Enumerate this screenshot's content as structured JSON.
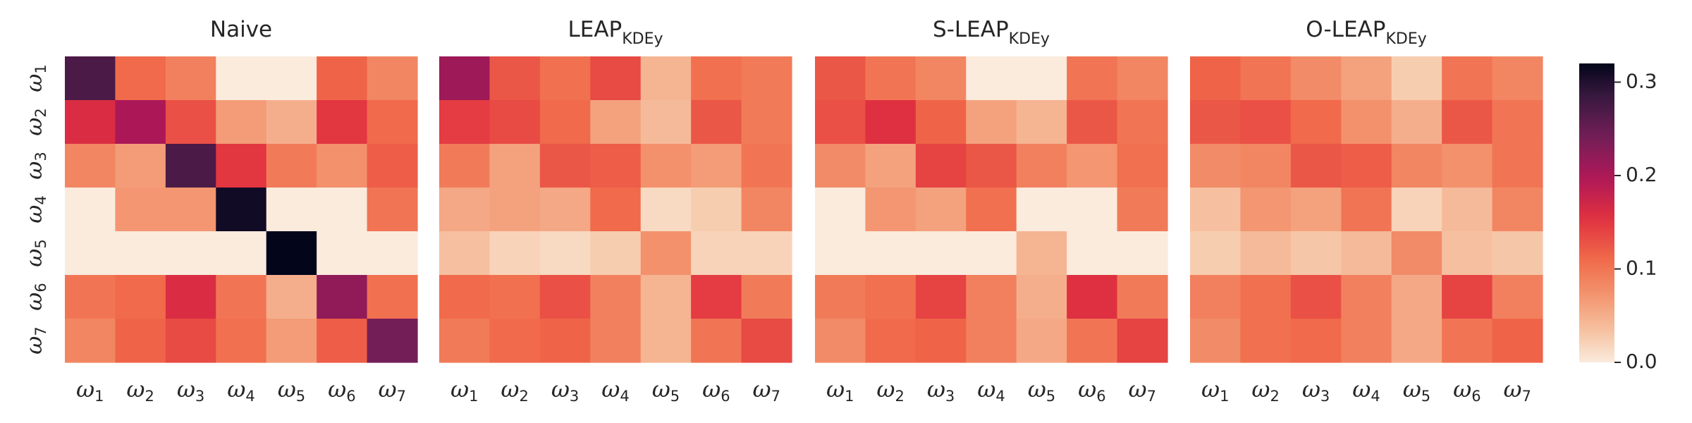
{
  "chart_data": [
    {
      "type": "heatmap",
      "title": "Naive",
      "title_main": "Naive",
      "title_sub": "",
      "xticks": [
        "ω1",
        "ω2",
        "ω3",
        "ω4",
        "ω5",
        "ω6",
        "ω7"
      ],
      "yticks": [
        "ω1",
        "ω2",
        "ω3",
        "ω4",
        "ω5",
        "ω6",
        "ω7"
      ],
      "values": [
        [
          0.27,
          0.11,
          0.09,
          0.0,
          0.0,
          0.115,
          0.085
        ],
        [
          0.16,
          0.2,
          0.13,
          0.065,
          0.05,
          0.15,
          0.11
        ],
        [
          0.085,
          0.065,
          0.27,
          0.15,
          0.095,
          0.075,
          0.12
        ],
        [
          0.0,
          0.07,
          0.07,
          0.31,
          0.0,
          0.0,
          0.1
        ],
        [
          0.0,
          0.0,
          0.0,
          0.0,
          0.32,
          0.0,
          0.0
        ],
        [
          0.1,
          0.11,
          0.16,
          0.1,
          0.05,
          0.22,
          0.105
        ],
        [
          0.085,
          0.115,
          0.135,
          0.105,
          0.065,
          0.12,
          0.24
        ]
      ]
    },
    {
      "type": "heatmap",
      "title": "LEAPKDEy",
      "title_main": "LEAP",
      "title_sub": "KDEy",
      "xticks": [
        "ω1",
        "ω2",
        "ω3",
        "ω4",
        "ω5",
        "ω6",
        "ω7"
      ],
      "yticks": [
        "ω1",
        "ω2",
        "ω3",
        "ω4",
        "ω5",
        "ω6",
        "ω7"
      ],
      "values": [
        [
          0.21,
          0.125,
          0.105,
          0.135,
          0.045,
          0.105,
          0.095
        ],
        [
          0.145,
          0.135,
          0.11,
          0.06,
          0.04,
          0.125,
          0.095
        ],
        [
          0.095,
          0.06,
          0.125,
          0.12,
          0.075,
          0.065,
          0.1
        ],
        [
          0.055,
          0.06,
          0.055,
          0.11,
          0.015,
          0.025,
          0.085
        ],
        [
          0.035,
          0.02,
          0.015,
          0.025,
          0.075,
          0.02,
          0.02
        ],
        [
          0.11,
          0.105,
          0.13,
          0.09,
          0.045,
          0.145,
          0.095
        ],
        [
          0.095,
          0.11,
          0.115,
          0.09,
          0.045,
          0.1,
          0.135
        ]
      ]
    },
    {
      "type": "heatmap",
      "title": "S-LEAPKDEy",
      "title_main": "S-LEAP",
      "title_sub": "KDEy",
      "xticks": [
        "ω1",
        "ω2",
        "ω3",
        "ω4",
        "ω5",
        "ω6",
        "ω7"
      ],
      "yticks": [
        "ω1",
        "ω2",
        "ω3",
        "ω4",
        "ω5",
        "ω6",
        "ω7"
      ],
      "values": [
        [
          0.125,
          0.1,
          0.085,
          0.0,
          0.0,
          0.1,
          0.085
        ],
        [
          0.13,
          0.155,
          0.115,
          0.06,
          0.045,
          0.125,
          0.1
        ],
        [
          0.08,
          0.06,
          0.14,
          0.125,
          0.09,
          0.07,
          0.105
        ],
        [
          0.0,
          0.07,
          0.06,
          0.105,
          0.0,
          0.0,
          0.095
        ],
        [
          0.0,
          0.0,
          0.0,
          0.0,
          0.045,
          0.0,
          0.0
        ],
        [
          0.095,
          0.105,
          0.14,
          0.09,
          0.05,
          0.155,
          0.095
        ],
        [
          0.08,
          0.11,
          0.115,
          0.09,
          0.055,
          0.1,
          0.14
        ]
      ]
    },
    {
      "type": "heatmap",
      "title": "O-LEAPKDEy",
      "title_main": "O-LEAP",
      "title_sub": "KDEy",
      "xticks": [
        "ω1",
        "ω2",
        "ω3",
        "ω4",
        "ω5",
        "ω6",
        "ω7"
      ],
      "yticks": [
        "ω1",
        "ω2",
        "ω3",
        "ω4",
        "ω5",
        "ω6",
        "ω7"
      ],
      "values": [
        [
          0.115,
          0.1,
          0.08,
          0.06,
          0.025,
          0.1,
          0.085
        ],
        [
          0.125,
          0.13,
          0.11,
          0.075,
          0.05,
          0.125,
          0.1
        ],
        [
          0.08,
          0.085,
          0.125,
          0.12,
          0.085,
          0.075,
          0.1
        ],
        [
          0.035,
          0.07,
          0.06,
          0.1,
          0.02,
          0.04,
          0.085
        ],
        [
          0.025,
          0.04,
          0.03,
          0.04,
          0.08,
          0.035,
          0.03
        ],
        [
          0.09,
          0.105,
          0.13,
          0.09,
          0.055,
          0.14,
          0.09
        ],
        [
          0.08,
          0.105,
          0.11,
          0.09,
          0.055,
          0.1,
          0.115
        ]
      ]
    }
  ],
  "colorbar": {
    "ticks": [
      "0.0",
      "0.1",
      "0.2",
      "0.3"
    ],
    "tick_values": [
      0.0,
      0.1,
      0.2,
      0.3
    ],
    "vmin": 0.0,
    "vmax": 0.32,
    "colormap": "rocket_r"
  },
  "colors": {
    "low": "#faebdd",
    "high": "#03051a"
  }
}
